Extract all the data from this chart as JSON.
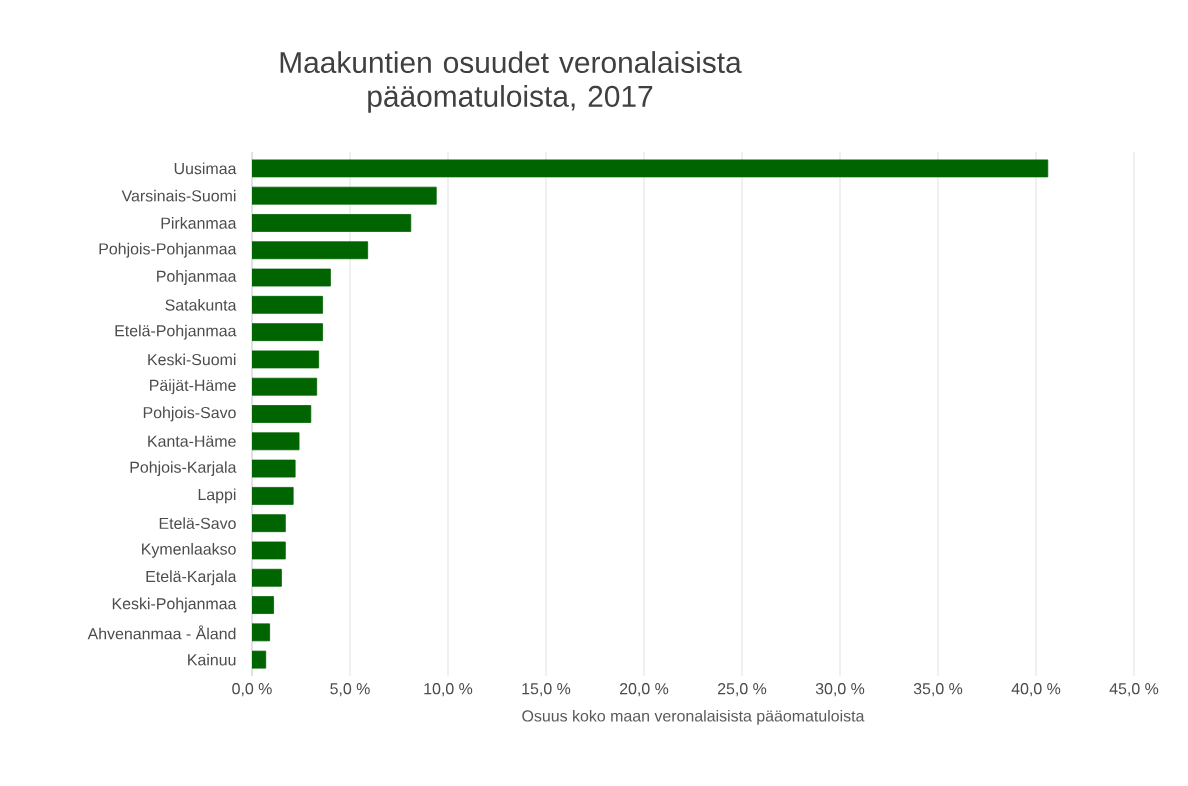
{
  "chart_data": {
    "type": "bar",
    "orientation": "horizontal",
    "title": "Maakuntien osuudet veronalaisista pääomatuloista, 2017",
    "xlabel": "Osuus koko maan veronalaisista pääomatuloista",
    "categories": [
      "Uusimaa",
      "Varsinais-Suomi",
      "Pirkanmaa",
      "Pohjois-Pohjanmaa",
      "Pohjanmaa",
      "Satakunta",
      "Etelä-Pohjanmaa",
      "Keski-Suomi",
      "Päijät-Häme",
      "Pohjois-Savo",
      "Kanta-Häme",
      "Pohjois-Karjala",
      "Lappi",
      "Etelä-Savo",
      "Kymenlaakso",
      "Etelä-Karjala",
      "Keski-Pohjanmaa",
      "Ahvenanmaa - Åland",
      "Kainuu"
    ],
    "values": [
      40.6,
      9.4,
      8.1,
      5.9,
      4.0,
      3.6,
      3.6,
      3.4,
      3.3,
      3.0,
      2.4,
      2.2,
      2.1,
      1.7,
      1.7,
      1.5,
      1.1,
      0.9,
      0.7
    ],
    "color": "#006400",
    "xlim": [
      0,
      45
    ],
    "xticks": [
      {
        "value": 0,
        "label": "0,0 %"
      },
      {
        "value": 5,
        "label": "5,0 %"
      },
      {
        "value": 10,
        "label": "10,0 %"
      },
      {
        "value": 15,
        "label": "15,0 %"
      },
      {
        "value": 20,
        "label": "20,0 %"
      },
      {
        "value": 25,
        "label": "25,0 %"
      },
      {
        "value": 30,
        "label": "30,0 %"
      },
      {
        "value": 35,
        "label": "35,0 %"
      },
      {
        "value": 40,
        "label": "40,0 %"
      },
      {
        "value": 45,
        "label": "45,0 %"
      }
    ],
    "grid": "x"
  }
}
